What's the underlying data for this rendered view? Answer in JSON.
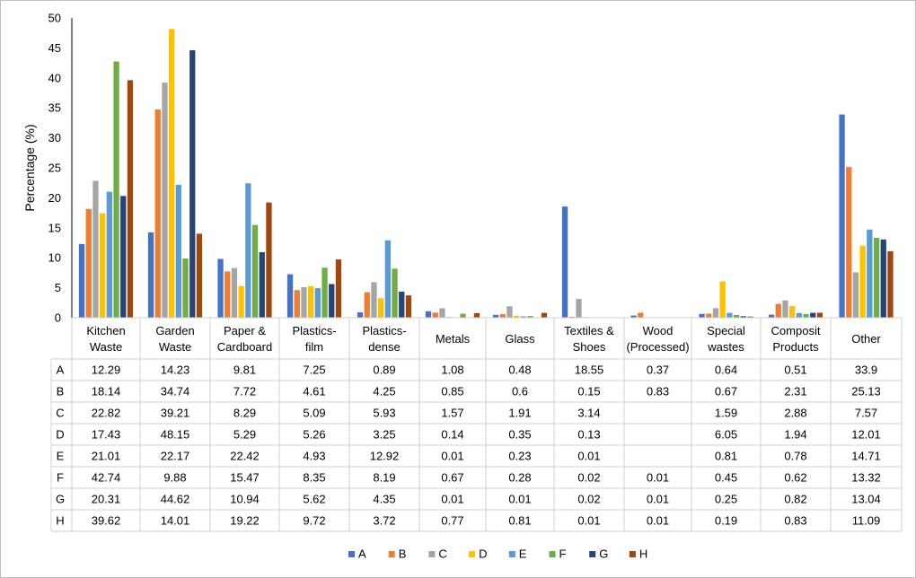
{
  "chart_data": {
    "type": "bar",
    "title": "",
    "xlabel": "",
    "ylabel": "Percentage (%)",
    "ylim": [
      0,
      50
    ],
    "yticks": [
      0,
      5,
      10,
      15,
      20,
      25,
      30,
      35,
      40,
      45,
      50
    ],
    "grid": false,
    "legend_position": "bottom",
    "data_table": true,
    "categories": [
      [
        "Kitchen",
        "Waste"
      ],
      [
        "Garden",
        "Waste"
      ],
      [
        "Paper &",
        "Cardboard"
      ],
      [
        "Plastics-",
        "film"
      ],
      [
        "Plastics-",
        "dense"
      ],
      [
        "Metals"
      ],
      [
        "Glass"
      ],
      [
        "Textiles &",
        "Shoes"
      ],
      [
        "Wood",
        "(Processed)"
      ],
      [
        "Special",
        "wastes"
      ],
      [
        "Composit",
        "Products"
      ],
      [
        "Other"
      ]
    ],
    "series": [
      {
        "name": "A",
        "color": "#4472c4",
        "values": [
          "12.29",
          "14.23",
          "9.81",
          "7.25",
          "0.89",
          "1.08",
          "0.48",
          "18.55",
          "0.37",
          "0.64",
          "0.51",
          "33.9"
        ]
      },
      {
        "name": "B",
        "color": "#ed7d31",
        "values": [
          "18.14",
          "34.74",
          "7.72",
          "4.61",
          "4.25",
          "0.85",
          "0.6",
          "0.15",
          "0.83",
          "0.67",
          "2.31",
          "25.13"
        ]
      },
      {
        "name": "C",
        "color": "#a5a5a5",
        "values": [
          "22.82",
          "39.21",
          "8.29",
          "5.09",
          "5.93",
          "1.57",
          "1.91",
          "3.14",
          "",
          "1.59",
          "2.88",
          "7.57"
        ]
      },
      {
        "name": "D",
        "color": "#ffc000",
        "values": [
          "17.43",
          "48.15",
          "5.29",
          "5.26",
          "3.25",
          "0.14",
          "0.35",
          "0.13",
          "",
          "6.05",
          "1.94",
          "12.01"
        ]
      },
      {
        "name": "E",
        "color": "#5b9bd5",
        "values": [
          "21.01",
          "22.17",
          "22.42",
          "4.93",
          "12.92",
          "0.01",
          "0.23",
          "0.01",
          "",
          "0.81",
          "0.78",
          "14.71"
        ]
      },
      {
        "name": "F",
        "color": "#70ad47",
        "values": [
          "42.74",
          "9.88",
          "15.47",
          "8.35",
          "8.19",
          "0.67",
          "0.28",
          "0.02",
          "0.01",
          "0.45",
          "0.62",
          "13.32"
        ]
      },
      {
        "name": "G",
        "color": "#264478",
        "values": [
          "20.31",
          "44.62",
          "10.94",
          "5.62",
          "4.35",
          "0.01",
          "0.01",
          "0.02",
          "0.01",
          "0.25",
          "0.82",
          "13.04"
        ]
      },
      {
        "name": "H",
        "color": "#9e480e",
        "values": [
          "39.62",
          "14.01",
          "19.22",
          "9.72",
          "3.72",
          "0.77",
          "0.81",
          "0.01",
          "0.01",
          "0.19",
          "0.83",
          "11.09"
        ]
      }
    ]
  }
}
